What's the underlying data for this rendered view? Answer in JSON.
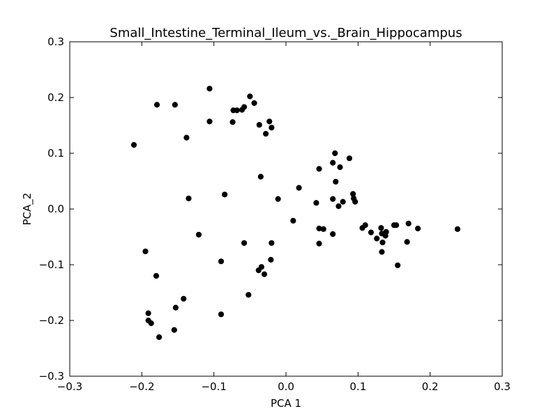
{
  "chart_data": {
    "type": "scatter",
    "title": "Small_Intestine_Terminal_Ileum_vs._Brain_Hippocampus",
    "xlabel": "PCA 1",
    "ylabel": "PCA_2",
    "xlim": [
      -0.3,
      0.3
    ],
    "ylim": [
      -0.3,
      0.3
    ],
    "x_ticks": [
      -0.3,
      -0.2,
      -0.1,
      0.0,
      0.1,
      0.2,
      0.3
    ],
    "y_ticks": [
      -0.3,
      -0.2,
      -0.1,
      0.0,
      0.1,
      0.2,
      0.3
    ],
    "x_tick_labels": [
      "−0.3",
      "−0.2",
      "−0.1",
      "0.0",
      "0.1",
      "0.2",
      "0.3"
    ],
    "y_tick_labels": [
      "−0.3",
      "−0.2",
      "−0.1",
      "0.0",
      "0.1",
      "0.2",
      "0.3"
    ],
    "grid": false,
    "marker_color": "#000000",
    "points": [
      [
        -0.106,
        0.216
      ],
      [
        -0.05,
        0.202
      ],
      [
        -0.044,
        0.19
      ],
      [
        -0.179,
        0.187
      ],
      [
        -0.154,
        0.187
      ],
      [
        -0.058,
        0.183
      ],
      [
        -0.061,
        0.178
      ],
      [
        -0.073,
        0.177
      ],
      [
        -0.068,
        0.177
      ],
      [
        -0.106,
        0.157
      ],
      [
        -0.074,
        0.156
      ],
      [
        -0.023,
        0.157
      ],
      [
        -0.037,
        0.151
      ],
      [
        -0.02,
        0.146
      ],
      [
        -0.028,
        0.135
      ],
      [
        -0.138,
        0.128
      ],
      [
        -0.211,
        0.115
      ],
      [
        0.068,
        0.1
      ],
      [
        0.088,
        0.091
      ],
      [
        0.065,
        0.083
      ],
      [
        0.046,
        0.072
      ],
      [
        0.075,
        0.075
      ],
      [
        -0.035,
        0.058
      ],
      [
        0.069,
        0.049
      ],
      [
        0.018,
        0.038
      ],
      [
        -0.085,
        0.026
      ],
      [
        0.093,
        0.027
      ],
      [
        -0.135,
        0.019
      ],
      [
        -0.011,
        0.018
      ],
      [
        0.065,
        0.018
      ],
      [
        0.094,
        0.019
      ],
      [
        0.096,
        0.013
      ],
      [
        0.079,
        0.013
      ],
      [
        0.042,
        0.011
      ],
      [
        0.073,
        0.005
      ],
      [
        0.01,
        -0.021
      ],
      [
        0.11,
        -0.029
      ],
      [
        0.15,
        -0.029
      ],
      [
        0.153,
        -0.029
      ],
      [
        0.17,
        -0.026
      ],
      [
        0.106,
        -0.034
      ],
      [
        0.046,
        -0.035
      ],
      [
        0.052,
        -0.036
      ],
      [
        0.132,
        -0.034
      ],
      [
        0.183,
        -0.035
      ],
      [
        0.238,
        -0.036
      ],
      [
        0.118,
        -0.042
      ],
      [
        0.139,
        -0.041
      ],
      [
        0.133,
        -0.044
      ],
      [
        0.138,
        -0.048
      ],
      [
        0.065,
        -0.045
      ],
      [
        -0.121,
        -0.046
      ],
      [
        0.126,
        -0.053
      ],
      [
        0.134,
        -0.06
      ],
      [
        0.168,
        -0.059
      ],
      [
        -0.058,
        -0.061
      ],
      [
        -0.02,
        -0.061
      ],
      [
        0.046,
        -0.062
      ],
      [
        -0.195,
        -0.076
      ],
      [
        0.133,
        -0.077
      ],
      [
        -0.09,
        -0.094
      ],
      [
        -0.021,
        -0.091
      ],
      [
        0.155,
        -0.101
      ],
      [
        -0.034,
        -0.104
      ],
      [
        -0.038,
        -0.11
      ],
      [
        -0.03,
        -0.117
      ],
      [
        -0.18,
        -0.12
      ],
      [
        -0.052,
        -0.154
      ],
      [
        -0.142,
        -0.161
      ],
      [
        -0.153,
        -0.177
      ],
      [
        -0.09,
        -0.189
      ],
      [
        -0.191,
        -0.187
      ],
      [
        -0.191,
        -0.2
      ],
      [
        -0.187,
        -0.205
      ],
      [
        -0.155,
        -0.217
      ],
      [
        -0.176,
        -0.23
      ]
    ]
  }
}
